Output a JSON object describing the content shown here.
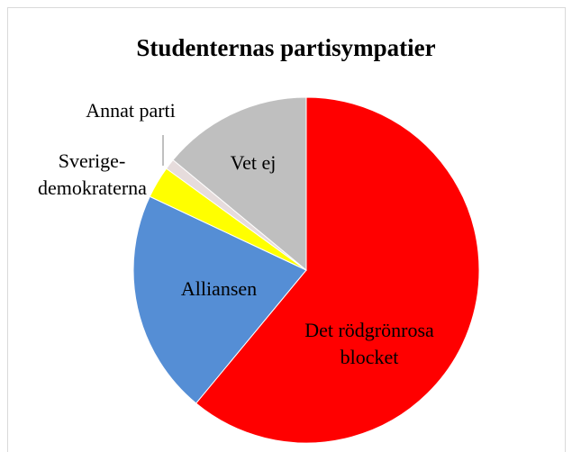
{
  "chart_data": {
    "type": "pie",
    "title": "Studenternas partisympatier",
    "categories": [
      "Det rödgrönrosa blocket",
      "Alliansen",
      "Sverige-demokraterna",
      "Annat parti",
      "Vet ej"
    ],
    "values": [
      61,
      21,
      3,
      1,
      14
    ],
    "colors": [
      "#ff0000",
      "#558ed5",
      "#ffff00",
      "#e6dcdc",
      "#bfbfbf"
    ]
  }
}
